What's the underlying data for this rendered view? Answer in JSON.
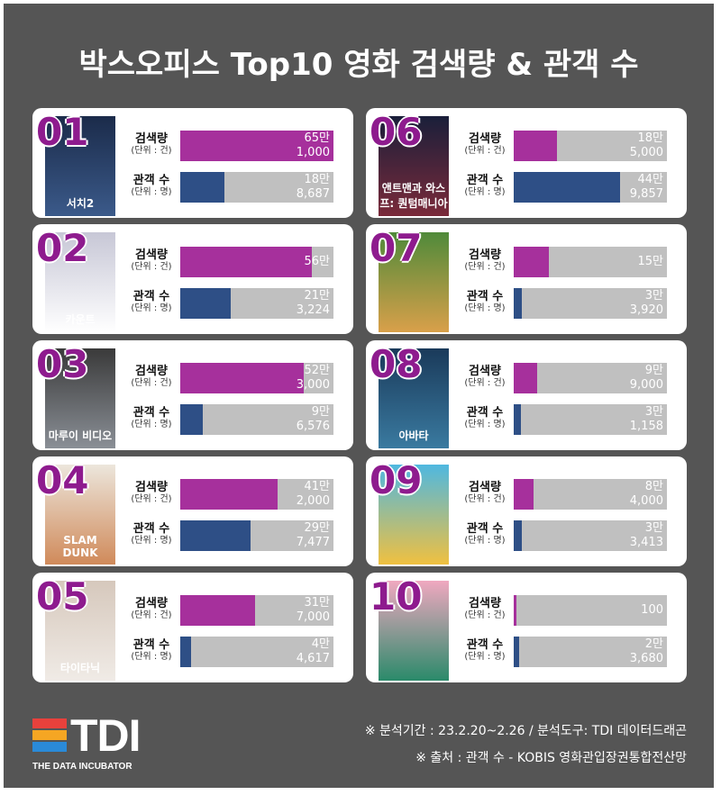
{
  "title": "박스오피스 Top10 영화 검색량 & 관객 수",
  "labels": {
    "search": "검색량",
    "search_unit": "(단위 : 건)",
    "audience": "관객 수",
    "audience_unit": "(단위 : 명)"
  },
  "colors": {
    "search_bar": "#a6309c",
    "audience_bar": "#2e4f86",
    "track": "#c0c0c0",
    "rank": "#8e1b8e",
    "background": "#555555"
  },
  "chart_data": {
    "type": "bar",
    "xlim": [
      0,
      650000
    ],
    "items": [
      {
        "rank": "01",
        "poster_title": "서치2",
        "search": 651000,
        "search_label": [
          "65만",
          "1,000"
        ],
        "audience": 188687,
        "audience_label": [
          "18만",
          "8,687"
        ]
      },
      {
        "rank": "02",
        "poster_title": "카운트",
        "search": 560000,
        "search_label": [
          "56만"
        ],
        "audience": 213224,
        "audience_label": [
          "21만",
          "3,224"
        ]
      },
      {
        "rank": "03",
        "poster_title": "마루이 비디오",
        "search": 523000,
        "search_label": [
          "52만",
          "3,000"
        ],
        "audience": 96576,
        "audience_label": [
          "9만",
          "6,576"
        ]
      },
      {
        "rank": "04",
        "poster_title": "SLAM DUNK",
        "search": 412000,
        "search_label": [
          "41만",
          "2,000"
        ],
        "audience": 297477,
        "audience_label": [
          "29만",
          "7,477"
        ]
      },
      {
        "rank": "05",
        "poster_title": "타이타닉",
        "search": 317000,
        "search_label": [
          "31만",
          "7,000"
        ],
        "audience": 44617,
        "audience_label": [
          "4만",
          "4,617"
        ]
      },
      {
        "rank": "06",
        "poster_title": "앤트맨과 와스프: 퀀텀매니아",
        "search": 185000,
        "search_label": [
          "18만",
          "5,000"
        ],
        "audience": 449857,
        "audience_label": [
          "44만",
          "9,857"
        ]
      },
      {
        "rank": "07",
        "poster_title": "",
        "search": 150000,
        "search_label": [
          "15만"
        ],
        "audience": 33920,
        "audience_label": [
          "3만",
          "3,920"
        ]
      },
      {
        "rank": "08",
        "poster_title": "아바타",
        "search": 99000,
        "search_label": [
          "9만",
          "9,000"
        ],
        "audience": 31158,
        "audience_label": [
          "3만",
          "1,158"
        ]
      },
      {
        "rank": "09",
        "poster_title": "",
        "search": 84000,
        "search_label": [
          "8만",
          "4,000"
        ],
        "audience": 33413,
        "audience_label": [
          "3만",
          "3,413"
        ]
      },
      {
        "rank": "10",
        "poster_title": "",
        "search": 100,
        "search_label": [
          "100"
        ],
        "audience": 23680,
        "audience_label": [
          "2만",
          "3,680"
        ]
      }
    ]
  },
  "footer": {
    "logo": "TDI",
    "logo_sub": "THE DATA INCUBATOR",
    "note1": "※ 분석기간 : 23.2.20~2.26 / 분석도구: TDI 데이터드래곤",
    "note2": "※ 출처 : 관객 수 -  KOBIS 영화관입장권통합전산망"
  }
}
